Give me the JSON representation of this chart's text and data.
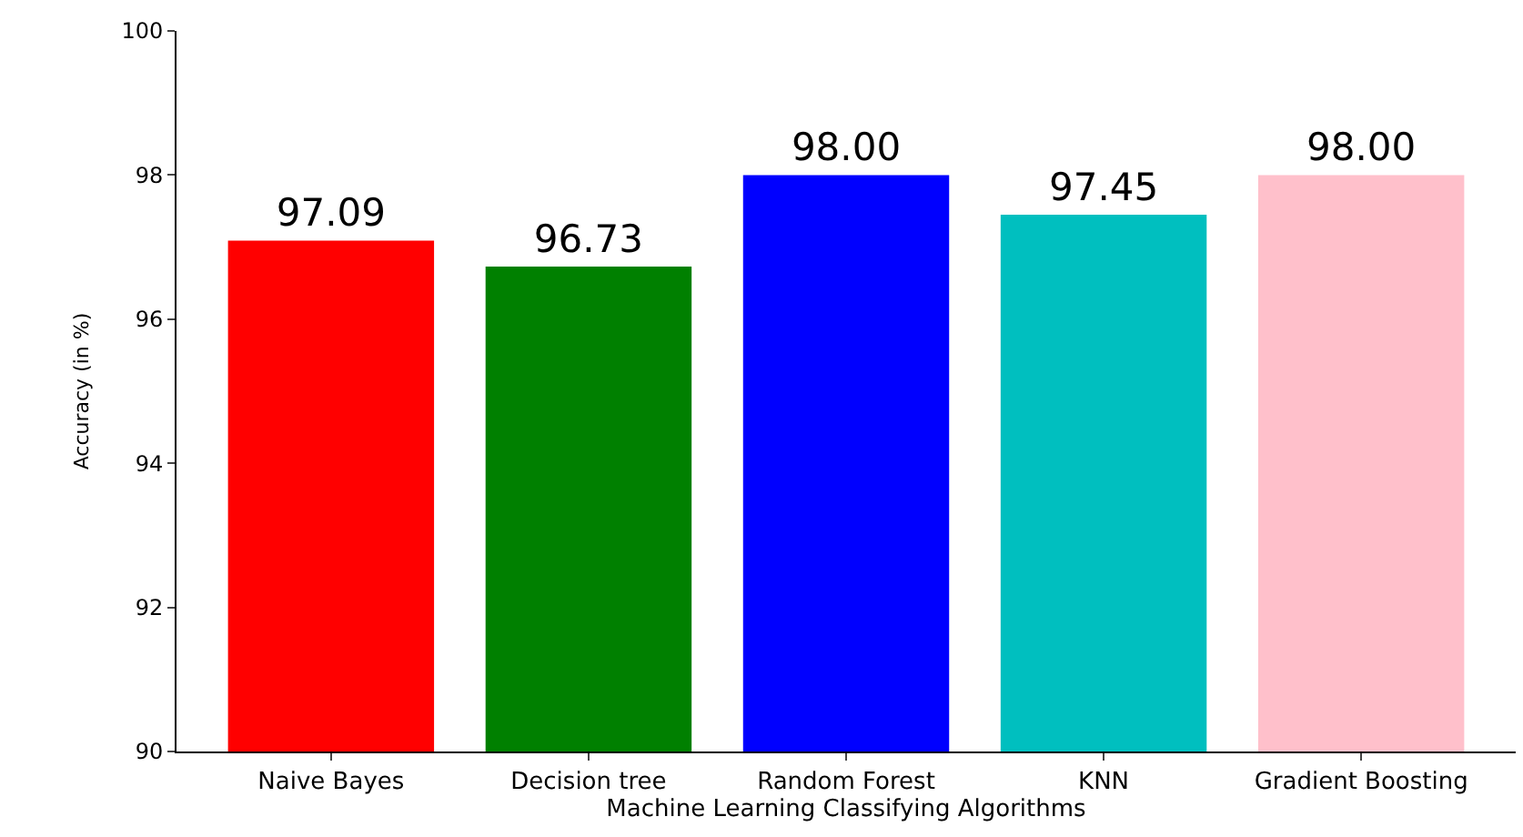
{
  "chart_data": {
    "type": "bar",
    "xlabel": "Machine Learning Classifying Algorithms",
    "ylabel": "Accuracy (in %)",
    "categories": [
      "Naive Bayes",
      "Decision tree",
      "Random Forest",
      "KNN",
      "Gradient Boosting"
    ],
    "values": [
      97.09,
      96.73,
      98.0,
      97.45,
      98.0
    ],
    "value_labels": [
      "97.09",
      "96.73",
      "98.00",
      "97.45",
      "98.00"
    ],
    "colors": [
      "#ff0000",
      "#008000",
      "#0000ff",
      "#00bfbf",
      "#ffc0cb"
    ],
    "ylim": [
      90,
      100
    ],
    "yticks": [
      90,
      92,
      94,
      96,
      98,
      100
    ]
  }
}
